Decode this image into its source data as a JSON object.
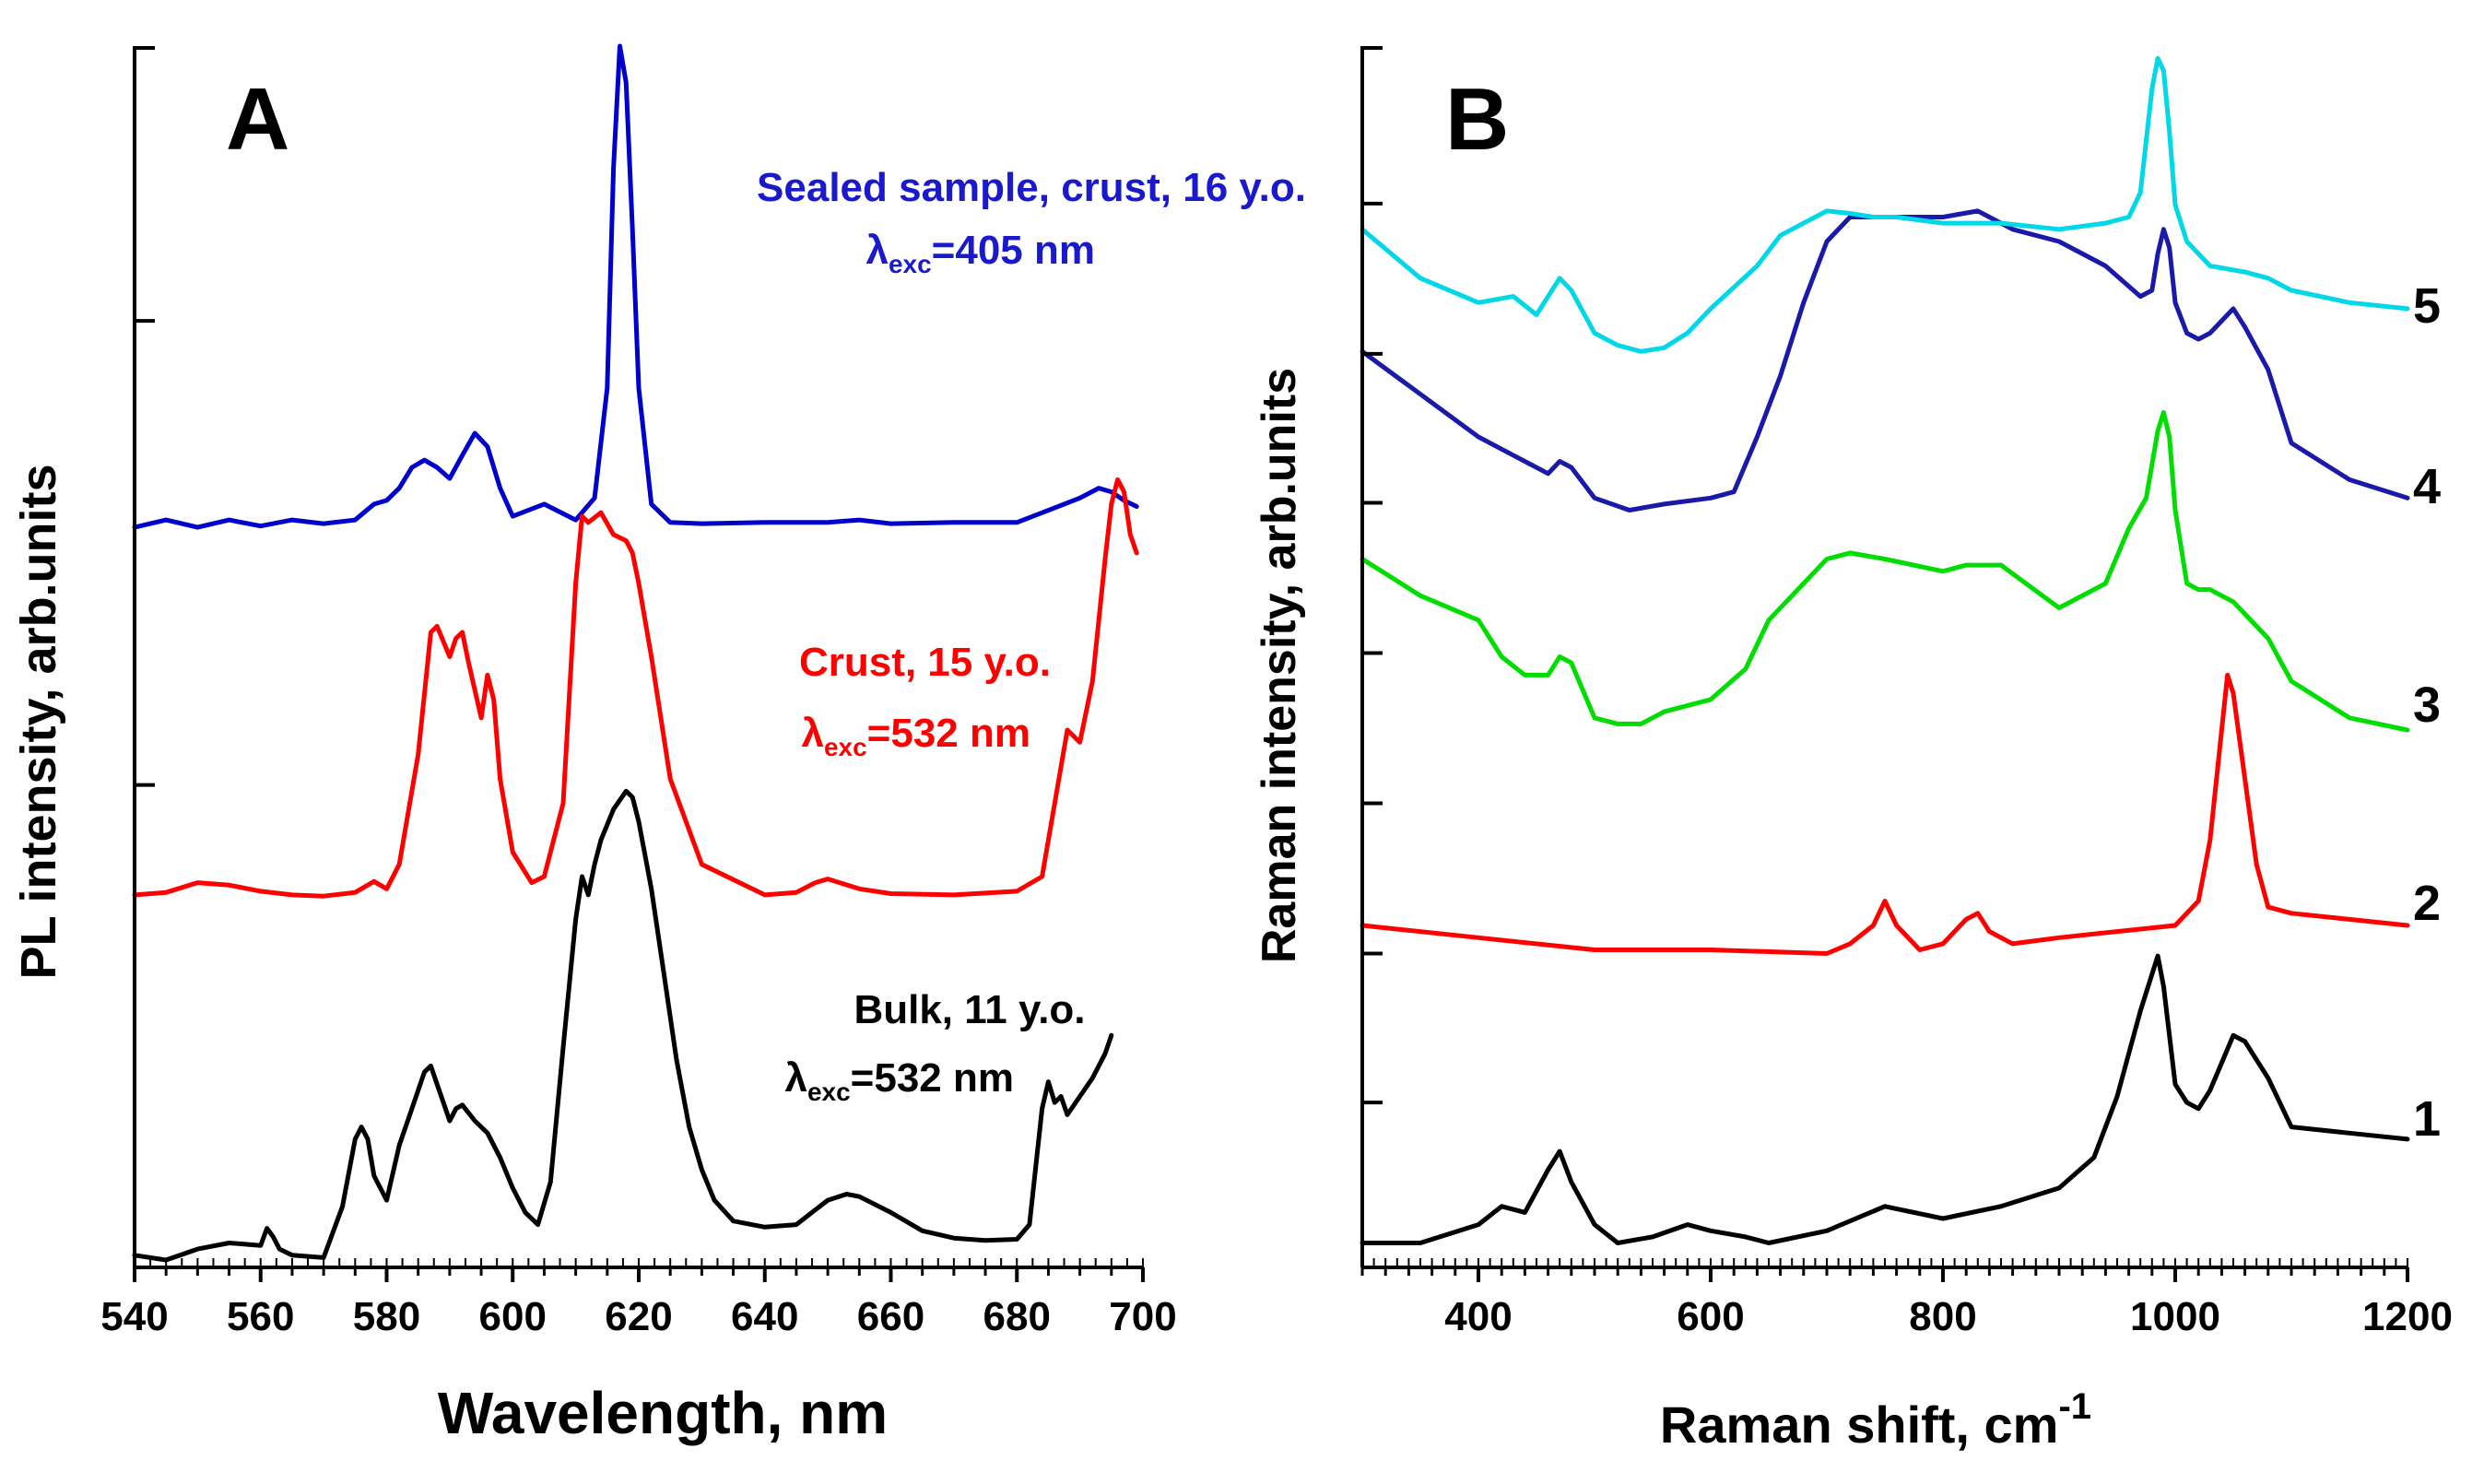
{
  "chart_data": [
    {
      "panel": "A",
      "type": "line",
      "xlabel": "Wavelength, nm",
      "ylabel": "PL intensity, arb.units",
      "xlim": [
        540,
        700
      ],
      "ylim": [
        0,
        100
      ],
      "xticks": [
        540,
        560,
        580,
        600,
        620,
        640,
        660,
        680,
        700
      ],
      "xtick_labels": [
        "540",
        "560",
        "580",
        "600",
        "620",
        "640",
        "660",
        "680",
        "700"
      ],
      "yticks": [
        39.5,
        77.5
      ],
      "series": [
        {
          "name": "Sealed sample, crust, 16 y.o.",
          "excitation_prefix": "λ",
          "excitation_sub": "exc",
          "excitation_value": "=405 nm",
          "color": "#0000cc",
          "x": [
            540,
            545,
            550,
            555,
            560,
            565,
            570,
            575,
            578,
            580,
            582,
            584,
            586,
            588,
            590,
            592,
            594,
            596,
            598,
            600,
            605,
            610,
            613,
            615,
            616,
            617,
            618,
            619,
            620,
            622,
            625,
            630,
            640,
            650,
            655,
            660,
            670,
            680,
            690,
            693,
            695,
            697,
            699
          ],
          "y": [
            60.6,
            61.2,
            60.6,
            61.2,
            60.7,
            61.2,
            60.9,
            61.2,
            62.5,
            62.8,
            63.8,
            65.5,
            66.1,
            65.5,
            64.6,
            66.5,
            68.3,
            67.2,
            63.8,
            61.5,
            62.5,
            61.2,
            63.0,
            72.0,
            90.0,
            100.0,
            97.0,
            85.0,
            72.0,
            62.5,
            61.0,
            60.9,
            61.0,
            61.0,
            61.2,
            60.9,
            61.0,
            61.0,
            63.0,
            63.8,
            63.5,
            62.8,
            62.3
          ]
        },
        {
          "name": "Crust, 15 y.o.",
          "excitation_prefix": "λ",
          "excitation_sub": "exc",
          "excitation_value": "=532 nm",
          "color": "#ff0000",
          "x": [
            540,
            545,
            550,
            555,
            560,
            565,
            570,
            575,
            578,
            580,
            582,
            585,
            587,
            588,
            590,
            591,
            592,
            593,
            595,
            596,
            597,
            598,
            600,
            603,
            605,
            608,
            610,
            611,
            612,
            614,
            616,
            618,
            619,
            620,
            622,
            625,
            630,
            640,
            645,
            648,
            650,
            655,
            660,
            670,
            680,
            684,
            686,
            688,
            690,
            692,
            694,
            695,
            696,
            697,
            698,
            699
          ],
          "y": [
            30.5,
            30.7,
            31.5,
            31.3,
            30.8,
            30.5,
            30.4,
            30.7,
            31.6,
            31.0,
            33.0,
            42.0,
            52.0,
            52.5,
            50.0,
            51.5,
            52.0,
            49.5,
            45.0,
            48.5,
            46.5,
            40.0,
            34.0,
            31.5,
            32.0,
            38.0,
            56.0,
            61.5,
            61.0,
            61.8,
            60.0,
            59.5,
            58.5,
            56.0,
            50.0,
            40.0,
            33.0,
            30.5,
            30.7,
            31.5,
            31.8,
            31.0,
            30.6,
            30.5,
            30.8,
            32.0,
            38.0,
            44.0,
            43.0,
            48.0,
            58.0,
            62.5,
            64.5,
            63.5,
            60.0,
            58.5
          ]
        },
        {
          "name": "Bulk, 11 y.o.",
          "excitation_prefix": "λ",
          "excitation_sub": "exc",
          "excitation_value": "=532 nm",
          "color": "#000000",
          "x": [
            540,
            545,
            550,
            555,
            560,
            561,
            562,
            563,
            565,
            570,
            573,
            575,
            576,
            577,
            578,
            580,
            582,
            584,
            586,
            587,
            588,
            590,
            591,
            592,
            594,
            596,
            598,
            600,
            602,
            604,
            606,
            608,
            610,
            611,
            612,
            613,
            614,
            616,
            618,
            619,
            620,
            622,
            624,
            626,
            628,
            630,
            632,
            635,
            640,
            645,
            650,
            653,
            655,
            660,
            665,
            670,
            675,
            680,
            682,
            684,
            685,
            686,
            687,
            688,
            690,
            692,
            694,
            695
          ],
          "y": [
            1.0,
            0.6,
            1.5,
            2.0,
            1.8,
            3.2,
            2.5,
            1.5,
            1.0,
            0.8,
            5.0,
            10.5,
            11.5,
            10.5,
            7.5,
            5.5,
            10.0,
            13.0,
            16.0,
            16.5,
            15.0,
            12.0,
            13.0,
            13.3,
            12.0,
            11.0,
            9.0,
            6.5,
            4.5,
            3.5,
            7.0,
            18.0,
            28.5,
            32.0,
            30.5,
            33.0,
            35.0,
            37.5,
            39.0,
            38.5,
            36.5,
            31.0,
            24.0,
            17.0,
            11.5,
            8.0,
            5.5,
            3.8,
            3.3,
            3.5,
            5.5,
            6.0,
            5.8,
            4.5,
            3.0,
            2.4,
            2.2,
            2.3,
            3.5,
            13.0,
            15.2,
            13.5,
            14.0,
            12.5,
            14.0,
            15.5,
            17.5,
            19.0
          ]
        }
      ]
    },
    {
      "panel": "B",
      "type": "line",
      "xlabel": "Raman shift, cm",
      "xlabel_sup": "-1",
      "ylabel": "Raman intensity, arb.units",
      "xlim": [
        300,
        1200
      ],
      "ylim": [
        0,
        100
      ],
      "xticks": [
        400,
        600,
        800,
        1000,
        1200
      ],
      "xtick_labels": [
        "400",
        "600",
        "800",
        "1000",
        "1200"
      ],
      "yticks": [
        13.5,
        25.7,
        38.0,
        50.3,
        62.6,
        74.8,
        87.1
      ],
      "series": [
        {
          "name": "1",
          "color": "#000000",
          "x": [
            300,
            350,
            400,
            420,
            440,
            460,
            470,
            480,
            500,
            520,
            550,
            580,
            600,
            630,
            650,
            700,
            750,
            800,
            850,
            900,
            930,
            950,
            970,
            980,
            985,
            990,
            1000,
            1010,
            1020,
            1030,
            1050,
            1060,
            1080,
            1100,
            1150,
            1200
          ],
          "y": [
            2.0,
            2.0,
            3.5,
            5.0,
            4.5,
            8.0,
            9.5,
            7.0,
            3.5,
            2.0,
            2.5,
            3.5,
            3.0,
            2.5,
            2.0,
            3.0,
            5.0,
            4.0,
            5.0,
            6.5,
            9.0,
            14.0,
            21.0,
            24.0,
            25.5,
            23.0,
            15.0,
            13.5,
            13.0,
            14.5,
            19.0,
            18.5,
            15.5,
            11.5,
            11.0,
            10.5
          ]
        },
        {
          "name": "2",
          "color": "#ff0000",
          "x": [
            300,
            400,
            500,
            600,
            700,
            720,
            740,
            750,
            760,
            780,
            800,
            820,
            830,
            840,
            860,
            900,
            950,
            1000,
            1020,
            1030,
            1040,
            1045,
            1050,
            1060,
            1070,
            1080,
            1100,
            1150,
            1200
          ],
          "y": [
            28.0,
            27.0,
            26.0,
            26.0,
            25.7,
            26.5,
            28.0,
            30.0,
            28.0,
            26.0,
            26.5,
            28.5,
            29.0,
            27.5,
            26.5,
            27.0,
            27.5,
            28.0,
            30.0,
            35.0,
            44.0,
            48.5,
            47.0,
            40.0,
            33.0,
            29.5,
            29.0,
            28.5,
            28.0
          ]
        },
        {
          "name": "3",
          "color": "#00dd00",
          "x": [
            300,
            350,
            400,
            420,
            440,
            460,
            470,
            480,
            500,
            520,
            540,
            560,
            600,
            630,
            650,
            700,
            720,
            750,
            800,
            820,
            850,
            900,
            940,
            960,
            975,
            985,
            990,
            995,
            1000,
            1010,
            1020,
            1030,
            1050,
            1080,
            1100,
            1150,
            1200
          ],
          "y": [
            58.0,
            55.0,
            53.0,
            50.0,
            48.5,
            48.5,
            50.0,
            49.5,
            45.0,
            44.5,
            44.5,
            45.5,
            46.5,
            49.0,
            53.0,
            58.0,
            58.5,
            58.0,
            57.0,
            57.5,
            57.5,
            54.0,
            56.0,
            60.5,
            63.0,
            68.5,
            70.0,
            68.0,
            62.0,
            56.0,
            55.5,
            55.5,
            54.5,
            51.5,
            48.0,
            45.0,
            44.0
          ]
        },
        {
          "name": "4",
          "color": "#1a1aaa",
          "x": [
            300,
            350,
            400,
            430,
            460,
            470,
            480,
            500,
            530,
            560,
            600,
            620,
            640,
            660,
            680,
            700,
            720,
            760,
            800,
            830,
            860,
            900,
            940,
            970,
            980,
            985,
            990,
            995,
            1000,
            1010,
            1020,
            1030,
            1040,
            1050,
            1060,
            1080,
            1100,
            1150,
            1200
          ],
          "y": [
            75.0,
            71.5,
            68.0,
            66.5,
            65.0,
            66.0,
            65.5,
            63.0,
            62.0,
            62.5,
            63.0,
            63.5,
            68.0,
            73.0,
            79.0,
            84.0,
            86.0,
            86.0,
            86.0,
            86.5,
            85.0,
            84.0,
            82.0,
            79.5,
            80.0,
            83.0,
            85.0,
            83.5,
            79.0,
            76.5,
            76.0,
            76.5,
            77.5,
            78.5,
            77.0,
            73.5,
            67.5,
            64.5,
            63.0
          ]
        },
        {
          "name": "5",
          "color": "#00d8e8",
          "x": [
            300,
            350,
            400,
            430,
            450,
            470,
            480,
            500,
            520,
            540,
            560,
            580,
            600,
            640,
            660,
            680,
            700,
            720,
            740,
            760,
            800,
            850,
            900,
            940,
            960,
            970,
            980,
            985,
            990,
            995,
            1000,
            1010,
            1030,
            1060,
            1080,
            1100,
            1150,
            1200
          ],
          "y": [
            85.0,
            81.0,
            79.0,
            79.5,
            78.0,
            81.0,
            80.0,
            76.5,
            75.5,
            75.0,
            75.3,
            76.5,
            78.5,
            82.0,
            84.5,
            85.5,
            86.5,
            86.3,
            86.0,
            86.0,
            85.5,
            85.5,
            85.0,
            85.5,
            86.0,
            88.0,
            96.5,
            99.0,
            98.0,
            93.0,
            87.0,
            84.0,
            82.0,
            81.5,
            81.0,
            80.0,
            79.0,
            78.5
          ]
        }
      ]
    }
  ]
}
